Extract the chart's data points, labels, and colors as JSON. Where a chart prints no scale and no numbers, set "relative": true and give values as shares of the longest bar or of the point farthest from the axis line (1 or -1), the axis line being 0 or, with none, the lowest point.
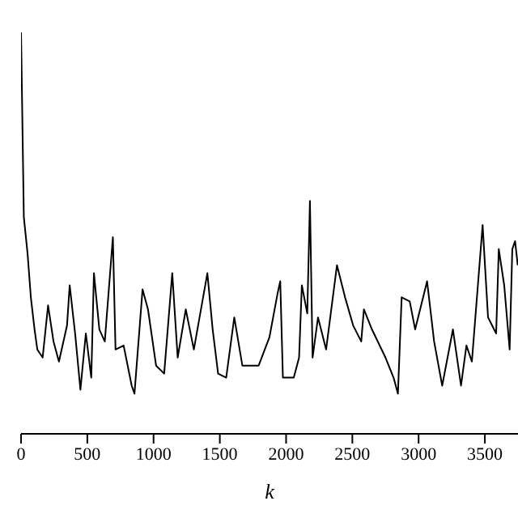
{
  "chart_data": {
    "type": "line",
    "xlabel": "k",
    "relative": true,
    "xlim": [
      0,
      3750
    ],
    "xticks": [
      0,
      500,
      1000,
      1500,
      2000,
      2500,
      3000,
      3500
    ],
    "marker": "none",
    "line_style": "solid",
    "grid": false,
    "legend": false,
    "x": [
      0,
      21,
      49,
      74,
      102,
      123,
      163,
      204,
      245,
      286,
      347,
      367,
      408,
      448,
      489,
      530,
      550,
      591,
      632,
      693,
      713,
      774,
      835,
      856,
      917,
      958,
      1019,
      1080,
      1141,
      1182,
      1243,
      1304,
      1406,
      1446,
      1487,
      1548,
      1609,
      1670,
      1772,
      1793,
      1874,
      1936,
      1956,
      1976,
      2058,
      2098,
      2119,
      2160,
      2180,
      2200,
      2241,
      2302,
      2384,
      2445,
      2506,
      2567,
      2587,
      2648,
      2750,
      2811,
      2844,
      2872,
      2933,
      2974,
      3064,
      3117,
      3178,
      3259,
      3320,
      3361,
      3402,
      3483,
      3524,
      3585,
      3605,
      3646,
      3687,
      3707,
      3728,
      3748
    ],
    "series": [
      {
        "color": "#000000",
        "values": [
          1,
          0.54,
          0.45,
          0.34,
          0.26,
          0.21,
          0.19,
          0.32,
          0.23,
          0.18,
          0.27,
          0.37,
          0.25,
          0.11,
          0.25,
          0.14,
          0.4,
          0.26,
          0.23,
          0.49,
          0.21,
          0.22,
          0.12,
          0.1,
          0.36,
          0.31,
          0.17,
          0.15,
          0.4,
          0.19,
          0.31,
          0.21,
          0.4,
          0.26,
          0.15,
          0.14,
          0.29,
          0.17,
          0.17,
          0.17,
          0.24,
          0.35,
          0.38,
          0.14,
          0.14,
          0.19,
          0.37,
          0.3,
          0.58,
          0.19,
          0.29,
          0.21,
          0.42,
          0.34,
          0.27,
          0.23,
          0.31,
          0.26,
          0.19,
          0.14,
          0.1,
          0.34,
          0.33,
          0.26,
          0.38,
          0.23,
          0.12,
          0.26,
          0.12,
          0.22,
          0.18,
          0.52,
          0.29,
          0.25,
          0.46,
          0.37,
          0.21,
          0.46,
          0.48,
          0.42
        ]
      }
    ]
  }
}
